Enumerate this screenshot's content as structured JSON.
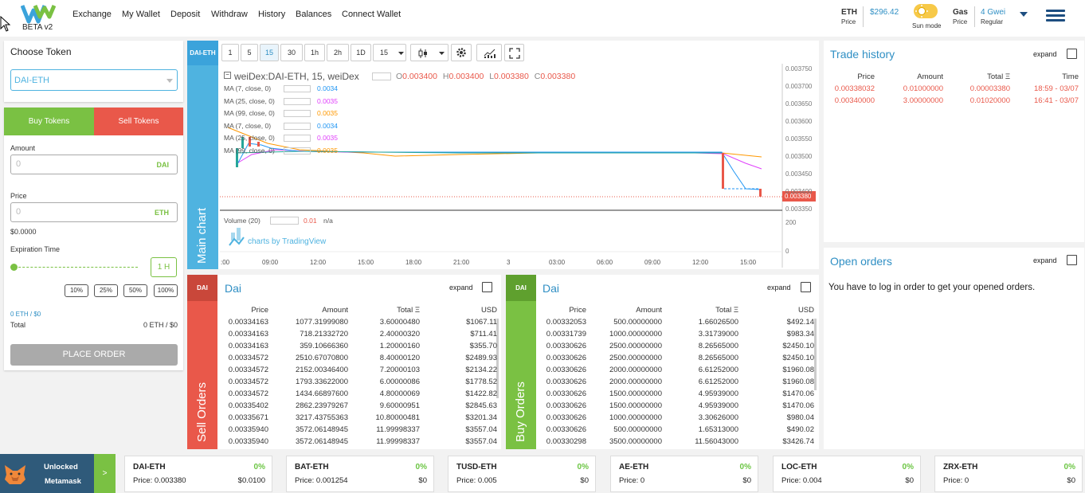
{
  "header": {
    "beta": "BETA v2",
    "nav": [
      "Exchange",
      "My Wallet",
      "Deposit",
      "Withdraw",
      "History",
      "Balances",
      "Connect Wallet"
    ],
    "eth_label": "ETH",
    "eth_sub": "Price",
    "eth_price": "$296.42",
    "sun_mode": "Sun mode",
    "gas_label": "Gas",
    "gas_sub": "Price",
    "gas_value": "4 Gwei",
    "gas_mode": "Regular"
  },
  "choose": {
    "title": "Choose Token",
    "selected": "DAI-ETH"
  },
  "order": {
    "buy_tab": "Buy Tokens",
    "sell_tab": "Sell Tokens",
    "amount_label": "Amount",
    "amount_value": "0",
    "amount_unit": "DAI",
    "price_label": "Price",
    "price_value": "0",
    "price_unit": "ETH",
    "usd_value": "$0.0000",
    "expiration_label": "Expiration Time",
    "expiration_value": "1 H",
    "pct_buttons": [
      "10%",
      "25%",
      "50%",
      "100%"
    ],
    "eth_usd": "0 ETH / $0",
    "total_label": "Total",
    "total_value": "0 ETH / $0",
    "place_order": "PLACE ORDER"
  },
  "chart": {
    "side_tag": "DAI-ETH",
    "side_label": "Main chart",
    "timeframes": [
      "1",
      "5",
      "15",
      "30",
      "1h",
      "2h",
      "1D",
      "15"
    ],
    "active_timeframe": "15",
    "legend_title": "weiDex:DAI-ETH, 15, weiDex",
    "ohlc": {
      "O": "0.003400",
      "H": "0.003400",
      "L": "0.003380",
      "C": "0.003380"
    },
    "ma_rows": [
      {
        "label": "MA (7, close, 0)",
        "value": "0.0034",
        "color": "#2196f3"
      },
      {
        "label": "MA (25, close, 0)",
        "value": "0.0035",
        "color": "#e040fb"
      },
      {
        "label": "MA (99, close, 0)",
        "value": "0.0035",
        "color": "#ff9800"
      },
      {
        "label": "MA (7, close, 0)",
        "value": "0.0034",
        "color": "#2196f3"
      },
      {
        "label": "MA (25, close, 0)",
        "value": "0.0035",
        "color": "#e040fb"
      },
      {
        "label": "MA (99, close, 0)",
        "value": "0.0035",
        "color": "#ff9800"
      }
    ],
    "y_ticks": [
      "0.003750",
      "0.003700",
      "0.003650",
      "0.003600",
      "0.003550",
      "0.003500",
      "0.003450",
      "0.003400",
      "0.003350"
    ],
    "last_price": "0.003380",
    "volume_label": "Volume (20)",
    "volume_value": "0.01",
    "volume_na": "n/a",
    "volume_ticks": [
      "200",
      "0"
    ],
    "tradingview": "charts by TradingView",
    "x_ticks": [
      ":00",
      "09:00",
      "12:00",
      "15:00",
      "18:00",
      "21:00",
      "3",
      "03:00",
      "06:00",
      "09:00",
      "12:00",
      "15:00"
    ]
  },
  "trade_history": {
    "title": "Trade history",
    "expand": "expand",
    "columns": [
      "Price",
      "Amount",
      "Total Ξ",
      "Time"
    ],
    "rows": [
      [
        "0.00338032",
        "0.01000000",
        "0.00003380",
        "18:59 - 03/07"
      ],
      [
        "0.00340000",
        "3.00000000",
        "0.01020000",
        "16:41 - 03/07"
      ]
    ]
  },
  "open_orders": {
    "title": "Open orders",
    "expand": "expand",
    "message": "You have to log in order to get your opened orders."
  },
  "sell_orders": {
    "tag": "DAI",
    "title": "Dai",
    "expand": "expand",
    "side_label": "Sell Orders",
    "columns": [
      "Price",
      "Amount",
      "Total Ξ",
      "USD"
    ],
    "rows": [
      [
        "0.00334163",
        "1077.31999080",
        "3.60000480",
        "$1067.11"
      ],
      [
        "0.00334163",
        "718.21332720",
        "2.40000320",
        "$711.41"
      ],
      [
        "0.00334163",
        "359.10666360",
        "1.20000160",
        "$355.70"
      ],
      [
        "0.00334572",
        "2510.67070800",
        "8.40000120",
        "$2489.93"
      ],
      [
        "0.00334572",
        "2152.00346400",
        "7.20000103",
        "$2134.22"
      ],
      [
        "0.00334572",
        "1793.33622000",
        "6.00000086",
        "$1778.52"
      ],
      [
        "0.00334572",
        "1434.66897600",
        "4.80000069",
        "$1422.82"
      ],
      [
        "0.00335402",
        "2862.23979267",
        "9.60000951",
        "$2845.63"
      ],
      [
        "0.00335671",
        "3217.43755363",
        "10.80000481",
        "$3201.34"
      ],
      [
        "0.00335940",
        "3572.06148945",
        "11.99998337",
        "$3557.04"
      ],
      [
        "0.00335940",
        "3572.06148945",
        "11.99998337",
        "$3557.04"
      ]
    ]
  },
  "buy_orders": {
    "tag": "DAI",
    "title": "Dai",
    "expand": "expand",
    "side_label": "Buy Orders",
    "columns": [
      "Price",
      "Amount",
      "Total Ξ",
      "USD"
    ],
    "rows": [
      [
        "0.00332053",
        "500.00000000",
        "1.66026500",
        "$492.14"
      ],
      [
        "0.00331739",
        "1000.00000000",
        "3.31739000",
        "$983.34"
      ],
      [
        "0.00330626",
        "2500.00000000",
        "8.26565000",
        "$2450.10"
      ],
      [
        "0.00330626",
        "2500.00000000",
        "8.26565000",
        "$2450.10"
      ],
      [
        "0.00330626",
        "2000.00000000",
        "6.61252000",
        "$1960.08"
      ],
      [
        "0.00330626",
        "2000.00000000",
        "6.61252000",
        "$1960.08"
      ],
      [
        "0.00330626",
        "1500.00000000",
        "4.95939000",
        "$1470.06"
      ],
      [
        "0.00330626",
        "1500.00000000",
        "4.95939000",
        "$1470.06"
      ],
      [
        "0.00330626",
        "1000.00000000",
        "3.30626000",
        "$980.04"
      ],
      [
        "0.00330626",
        "500.00000000",
        "1.65313000",
        "$490.02"
      ],
      [
        "0.00330298",
        "3500.00000000",
        "11.56043000",
        "$3426.74"
      ]
    ]
  },
  "metamask": {
    "line1": "Unlocked",
    "line2": "Metamask",
    "arrow": ">"
  },
  "tickers": [
    {
      "name": "DAI-ETH",
      "pct": "0%",
      "price": "Price: 0.003380",
      "usd": "$0.0100"
    },
    {
      "name": "BAT-ETH",
      "pct": "0%",
      "price": "Price: 0.001254",
      "usd": "$0"
    },
    {
      "name": "TUSD-ETH",
      "pct": "0%",
      "price": "Price: 0.005",
      "usd": "$0"
    },
    {
      "name": "AE-ETH",
      "pct": "0%",
      "price": "Price: 0",
      "usd": "$0"
    },
    {
      "name": "LOC-ETH",
      "pct": "0%",
      "price": "Price: 0.004",
      "usd": "$0"
    },
    {
      "name": "ZRX-ETH",
      "pct": "0%",
      "price": "Price: 0",
      "usd": "$0"
    }
  ],
  "colors": {
    "accent": "#2f8fc4",
    "buy": "#7ac143",
    "sell": "#e9584a",
    "chart_side": "#4fb3e0"
  }
}
